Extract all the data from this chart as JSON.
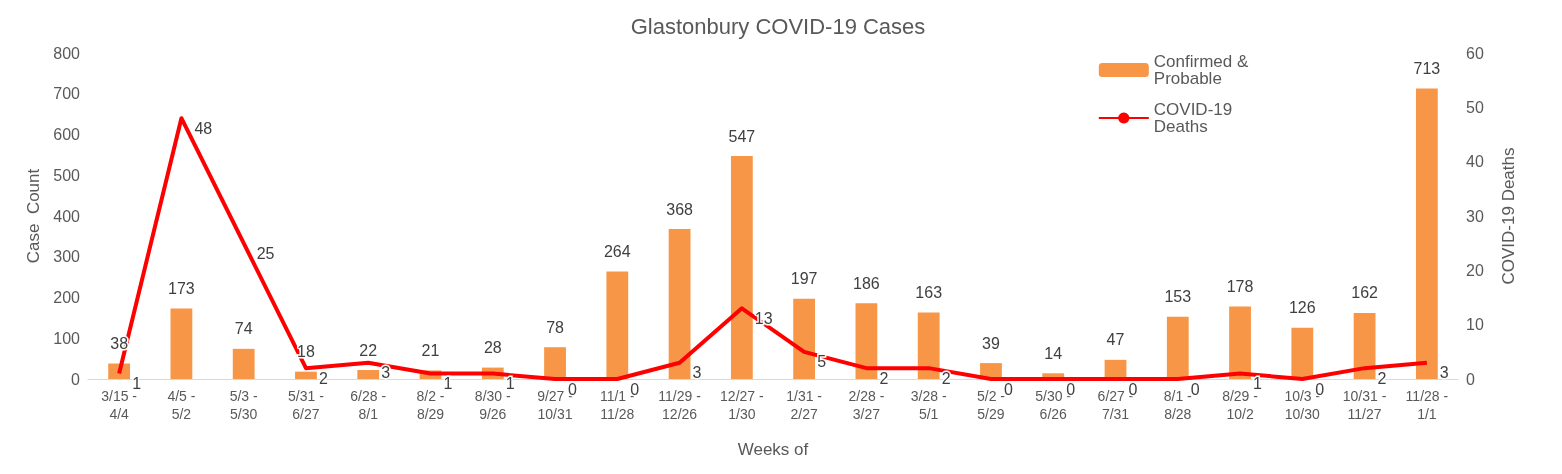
{
  "chart_data": {
    "type": "bar",
    "title": "Glastonbury COVID-19 Cases",
    "xlabel": "Weeks of",
    "ylabel": "Case  Count",
    "y2label": "COVID-19 Deaths",
    "categories": [
      "3/15 - 4/4",
      "4/5 - 5/2",
      "5/3 - 5/30",
      "5/31 - 6/27",
      "6/28 - 8/1",
      "8/2 - 8/29",
      "8/30 - 9/26",
      "9/27 - 10/31",
      "11/1 - 11/28",
      "11/29 - 12/26",
      "12/27 - 1/30",
      "1/31 - 2/27",
      "2/28 - 3/27",
      "3/28 - 5/1",
      "5/2 - 5/29",
      "5/30 - 6/26",
      "6/27 - 7/31",
      "8/1 - 8/28",
      "8/29 - 10/2",
      "10/3 - 10/30",
      "10/31 - 11/27",
      "11/28 - 1/1"
    ],
    "series": [
      {
        "name": "Confirmed & Probable",
        "color": "#f79646",
        "values": [
          38,
          173,
          74,
          18,
          22,
          21,
          28,
          78,
          264,
          368,
          547,
          197,
          186,
          163,
          39,
          14,
          47,
          153,
          178,
          126,
          162,
          713
        ]
      },
      {
        "name": "COVID-19 Deaths",
        "type": "line",
        "axis": "y2",
        "color": "#ff0000",
        "values": [
          1,
          48,
          25,
          2,
          3,
          1,
          1,
          0,
          0,
          3,
          13,
          5,
          2,
          2,
          0,
          0,
          0,
          0,
          1,
          0,
          2,
          3
        ]
      }
    ],
    "ylim": [
      0,
      800
    ],
    "yticks": [
      0,
      100,
      200,
      300,
      400,
      500,
      600,
      700,
      800
    ],
    "y2lim": [
      0,
      60
    ],
    "y2ticks": [
      0,
      10,
      20,
      30,
      40,
      50,
      60
    ],
    "data_labels": true,
    "grid": false,
    "legend": "top right",
    "marker": "none"
  }
}
